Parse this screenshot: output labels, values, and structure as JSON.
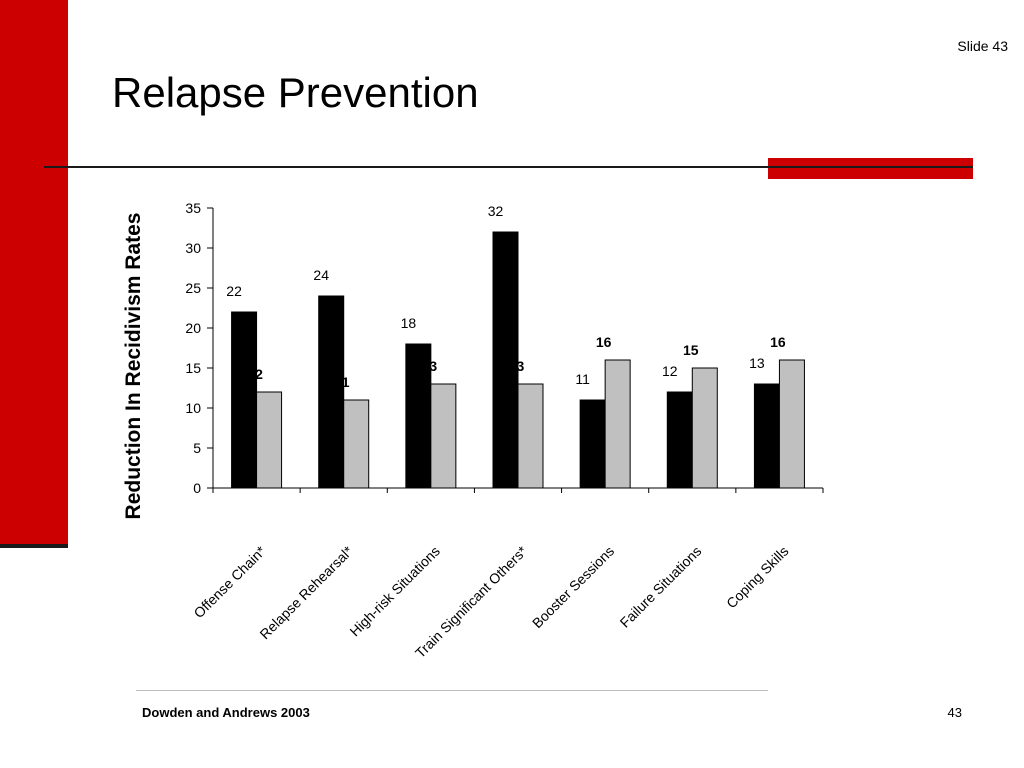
{
  "slide": {
    "label": "Slide 43",
    "title": "Relapse Prevention",
    "source": "Dowden and Andrews 2003",
    "page_number": "43"
  },
  "colors": {
    "accent": "#cc0000",
    "series_1": "#000000",
    "series_2": "#c0c0c0"
  },
  "chart_data": {
    "type": "bar",
    "title": "",
    "xlabel": "",
    "ylabel": "Reduction In Recidivism Rates",
    "ylim": [
      0,
      35
    ],
    "yticks": [
      0,
      5,
      10,
      15,
      20,
      25,
      30,
      35
    ],
    "categories": [
      "Offense Chain*",
      "Relapse Rehearsal*",
      "High-risk Situations",
      "Train Significant Others*",
      "Booster Sessions",
      "Failure Situations",
      "Coping Skills"
    ],
    "series": [
      {
        "values": [
          22,
          24,
          18,
          32,
          11,
          12,
          13
        ],
        "color": "#000000",
        "label_weight": "normal"
      },
      {
        "values": [
          12,
          11,
          13,
          13,
          16,
          15,
          16
        ],
        "color": "#c0c0c0",
        "label_weight": "bold"
      }
    ],
    "grid": false,
    "legend": "none"
  }
}
